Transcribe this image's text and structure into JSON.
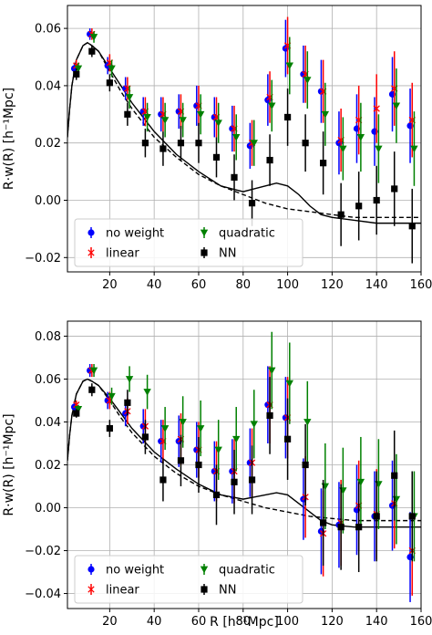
{
  "figure": {
    "shared_xlabel": "R [h⁻¹Mpc]"
  },
  "chart_data": [
    {
      "type": "scatter",
      "title": "",
      "xlabel": "",
      "ylabel": "R·w(R) [h⁻¹Mpc]",
      "xlim": [
        1,
        160
      ],
      "ylim": [
        -0.025,
        0.068
      ],
      "xticks": [
        20,
        40,
        60,
        80,
        100,
        120,
        140,
        160
      ],
      "yticks": [
        -0.02,
        0.0,
        0.02,
        0.04,
        0.06
      ],
      "xtick_labels": [
        "20",
        "40",
        "60",
        "80",
        "100",
        "120",
        "140",
        "160"
      ],
      "ytick_labels": [
        "−0.02",
        "0.00",
        "0.02",
        "0.04",
        "0.06"
      ],
      "grid": true,
      "legend_position": "lower-left",
      "series": [
        {
          "name": "no weight",
          "marker": "circle",
          "color": "#0000ff",
          "offset": -1,
          "x": [
            5,
            12,
            20,
            28,
            36,
            44,
            52,
            60,
            68,
            76,
            84,
            92,
            100,
            108,
            116,
            124,
            132,
            140,
            148,
            156
          ],
          "y": [
            0.046,
            0.058,
            0.047,
            0.039,
            0.031,
            0.03,
            0.031,
            0.033,
            0.029,
            0.025,
            0.019,
            0.035,
            0.053,
            0.044,
            0.038,
            0.02,
            0.025,
            0.024,
            0.037,
            0.026
          ],
          "err": [
            0.002,
            0.002,
            0.003,
            0.004,
            0.005,
            0.006,
            0.006,
            0.007,
            0.007,
            0.008,
            0.008,
            0.009,
            0.01,
            0.01,
            0.011,
            0.011,
            0.012,
            0.012,
            0.013,
            0.013
          ]
        },
        {
          "name": "linear",
          "marker": "x",
          "color": "#ff0000",
          "offset": 0,
          "x": [
            5,
            12,
            20,
            28,
            36,
            44,
            52,
            60,
            68,
            76,
            84,
            92,
            100,
            108,
            116,
            124,
            132,
            140,
            148,
            156
          ],
          "y": [
            0.047,
            0.058,
            0.048,
            0.039,
            0.031,
            0.03,
            0.031,
            0.033,
            0.029,
            0.025,
            0.02,
            0.036,
            0.054,
            0.044,
            0.038,
            0.021,
            0.028,
            0.032,
            0.039,
            0.028
          ],
          "err": [
            0.002,
            0.002,
            0.003,
            0.004,
            0.005,
            0.006,
            0.006,
            0.007,
            0.007,
            0.008,
            0.008,
            0.009,
            0.01,
            0.01,
            0.011,
            0.011,
            0.012,
            0.012,
            0.013,
            0.013
          ]
        },
        {
          "name": "quadratic",
          "marker": "triangle-down",
          "color": "#008000",
          "offset": 1,
          "x": [
            5,
            12,
            20,
            28,
            36,
            44,
            52,
            60,
            68,
            76,
            84,
            92,
            100,
            108,
            116,
            124,
            132,
            140,
            148,
            156
          ],
          "y": [
            0.046,
            0.057,
            0.046,
            0.036,
            0.029,
            0.028,
            0.028,
            0.03,
            0.027,
            0.022,
            0.02,
            0.033,
            0.047,
            0.042,
            0.03,
            0.018,
            0.022,
            0.018,
            0.033,
            0.018
          ],
          "err": [
            0.002,
            0.002,
            0.003,
            0.004,
            0.005,
            0.006,
            0.006,
            0.007,
            0.007,
            0.008,
            0.008,
            0.009,
            0.01,
            0.01,
            0.011,
            0.011,
            0.012,
            0.012,
            0.013,
            0.013
          ]
        },
        {
          "name": "NN",
          "marker": "square",
          "color": "#000000",
          "offset": 0,
          "x": [
            5,
            12,
            20,
            28,
            36,
            44,
            52,
            60,
            68,
            76,
            84,
            92,
            100,
            108,
            116,
            124,
            132,
            140,
            148,
            156
          ],
          "y": [
            0.044,
            0.052,
            0.041,
            0.03,
            0.02,
            0.018,
            0.02,
            0.02,
            0.015,
            0.008,
            -0.001,
            0.014,
            0.029,
            0.02,
            0.013,
            -0.005,
            -0.002,
            0.0,
            0.004,
            -0.009
          ],
          "err": [
            0.002,
            0.002,
            0.003,
            0.004,
            0.005,
            0.006,
            0.006,
            0.007,
            0.007,
            0.008,
            0.008,
            0.009,
            0.01,
            0.01,
            0.011,
            0.011,
            0.012,
            0.012,
            0.013,
            0.013
          ]
        }
      ],
      "model_curves": [
        {
          "style": "solid",
          "x": [
            1,
            2,
            3,
            5,
            8,
            10,
            12,
            15,
            20,
            25,
            30,
            40,
            50,
            60,
            70,
            80,
            85,
            90,
            95,
            100,
            105,
            110,
            115,
            120,
            130,
            140,
            150,
            160
          ],
          "y": [
            0.022,
            0.032,
            0.04,
            0.049,
            0.054,
            0.055,
            0.054,
            0.052,
            0.046,
            0.04,
            0.034,
            0.024,
            0.016,
            0.01,
            0.005,
            0.003,
            0.004,
            0.005,
            0.006,
            0.005,
            0.002,
            -0.002,
            -0.005,
            -0.006,
            -0.007,
            -0.008,
            -0.008,
            -0.008
          ]
        },
        {
          "style": "dashed",
          "x": [
            1,
            2,
            3,
            5,
            8,
            10,
            12,
            15,
            20,
            25,
            30,
            40,
            50,
            60,
            70,
            80,
            90,
            100,
            110,
            120,
            130,
            140,
            150,
            160
          ],
          "y": [
            0.022,
            0.032,
            0.04,
            0.049,
            0.054,
            0.055,
            0.054,
            0.052,
            0.045,
            0.038,
            0.032,
            0.022,
            0.015,
            0.009,
            0.005,
            0.002,
            -0.001,
            -0.003,
            -0.004,
            -0.005,
            -0.006,
            -0.006,
            -0.006,
            -0.006
          ]
        }
      ]
    },
    {
      "type": "scatter",
      "title": "",
      "xlabel": "R [h⁻¹Mpc]",
      "ylabel": "R·w(R) [h⁻¹Mpc]",
      "xlim": [
        1,
        160
      ],
      "ylim": [
        -0.047,
        0.087
      ],
      "xticks": [
        20,
        40,
        60,
        80,
        100,
        120,
        140,
        160
      ],
      "yticks": [
        -0.04,
        -0.02,
        0.0,
        0.02,
        0.04,
        0.06,
        0.08
      ],
      "xtick_labels": [
        "20",
        "40",
        "60",
        "80",
        "100",
        "120",
        "140",
        "160"
      ],
      "ytick_labels": [
        "−0.04",
        "−0.02",
        "0.00",
        "0.02",
        "0.04",
        "0.06",
        "0.08"
      ],
      "grid": true,
      "legend_position": "lower-left",
      "series": [
        {
          "name": "no weight",
          "marker": "circle",
          "color": "#0000ff",
          "offset": -1,
          "x": [
            5,
            12,
            20,
            28,
            36,
            44,
            52,
            60,
            68,
            76,
            84,
            92,
            100,
            108,
            116,
            124,
            132,
            140,
            148,
            156
          ],
          "y": [
            0.047,
            0.064,
            0.05,
            0.044,
            0.038,
            0.031,
            0.031,
            0.027,
            0.017,
            0.017,
            0.021,
            0.048,
            0.042,
            0.004,
            -0.011,
            -0.008,
            -0.001,
            -0.004,
            0.001,
            -0.023
          ],
          "err": [
            0.002,
            0.003,
            0.004,
            0.006,
            0.008,
            0.01,
            0.012,
            0.013,
            0.014,
            0.015,
            0.016,
            0.018,
            0.019,
            0.019,
            0.02,
            0.02,
            0.021,
            0.021,
            0.021,
            0.021
          ]
        },
        {
          "name": "linear",
          "marker": "x",
          "color": "#ff0000",
          "offset": 0,
          "x": [
            5,
            12,
            20,
            28,
            36,
            44,
            52,
            60,
            68,
            76,
            84,
            92,
            100,
            108,
            116,
            124,
            132,
            140,
            148,
            156
          ],
          "y": [
            0.048,
            0.064,
            0.05,
            0.045,
            0.038,
            0.031,
            0.032,
            0.027,
            0.017,
            0.017,
            0.021,
            0.048,
            0.042,
            0.005,
            -0.012,
            -0.007,
            0.001,
            -0.003,
            0.002,
            -0.02
          ],
          "err": [
            0.002,
            0.003,
            0.004,
            0.006,
            0.008,
            0.01,
            0.012,
            0.013,
            0.014,
            0.015,
            0.016,
            0.018,
            0.019,
            0.019,
            0.02,
            0.02,
            0.021,
            0.021,
            0.021,
            0.021
          ]
        },
        {
          "name": "quadratic",
          "marker": "triangle-down",
          "color": "#008000",
          "offset": 1,
          "x": [
            5,
            12,
            20,
            28,
            36,
            44,
            52,
            60,
            68,
            76,
            84,
            92,
            100,
            108,
            116,
            124,
            132,
            140,
            148,
            156
          ],
          "y": [
            0.046,
            0.064,
            0.052,
            0.06,
            0.054,
            0.037,
            0.04,
            0.037,
            0.027,
            0.032,
            0.039,
            0.064,
            0.058,
            0.04,
            0.01,
            0.008,
            0.012,
            0.011,
            0.004,
            -0.004
          ],
          "err": [
            0.002,
            0.003,
            0.004,
            0.006,
            0.008,
            0.01,
            0.012,
            0.013,
            0.014,
            0.015,
            0.016,
            0.018,
            0.019,
            0.019,
            0.02,
            0.02,
            0.021,
            0.021,
            0.021,
            0.021
          ]
        },
        {
          "name": "NN",
          "marker": "square",
          "color": "#000000",
          "offset": 0,
          "x": [
            5,
            12,
            20,
            28,
            36,
            44,
            52,
            60,
            68,
            76,
            84,
            92,
            100,
            108,
            116,
            124,
            132,
            140,
            148,
            156
          ],
          "y": [
            0.044,
            0.055,
            0.037,
            0.049,
            0.033,
            0.013,
            0.022,
            0.02,
            0.006,
            0.012,
            0.013,
            0.043,
            0.032,
            0.02,
            -0.007,
            -0.009,
            -0.009,
            -0.004,
            0.015,
            -0.004
          ],
          "err": [
            0.002,
            0.003,
            0.004,
            0.006,
            0.008,
            0.01,
            0.012,
            0.013,
            0.014,
            0.015,
            0.016,
            0.018,
            0.019,
            0.019,
            0.02,
            0.02,
            0.021,
            0.021,
            0.021,
            0.021
          ]
        }
      ],
      "model_curves": [
        {
          "style": "solid",
          "x": [
            1,
            2,
            3,
            5,
            8,
            10,
            12,
            15,
            20,
            25,
            30,
            40,
            50,
            60,
            70,
            80,
            85,
            90,
            95,
            100,
            105,
            110,
            115,
            120,
            130,
            140,
            150,
            160
          ],
          "y": [
            0.022,
            0.034,
            0.043,
            0.053,
            0.059,
            0.06,
            0.059,
            0.057,
            0.051,
            0.044,
            0.037,
            0.026,
            0.018,
            0.011,
            0.006,
            0.004,
            0.005,
            0.006,
            0.007,
            0.006,
            0.002,
            -0.002,
            -0.006,
            -0.008,
            -0.009,
            -0.009,
            -0.009,
            -0.009
          ]
        },
        {
          "style": "dashed",
          "x": [
            1,
            2,
            3,
            5,
            8,
            10,
            12,
            15,
            20,
            25,
            30,
            40,
            50,
            60,
            70,
            80,
            90,
            100,
            110,
            120,
            130,
            140,
            150,
            160
          ],
          "y": [
            0.022,
            0.034,
            0.043,
            0.053,
            0.059,
            0.06,
            0.059,
            0.057,
            0.05,
            0.042,
            0.035,
            0.024,
            0.016,
            0.01,
            0.006,
            0.003,
            0.0,
            -0.002,
            -0.004,
            -0.005,
            -0.006,
            -0.006,
            -0.006,
            -0.006
          ]
        }
      ]
    }
  ]
}
